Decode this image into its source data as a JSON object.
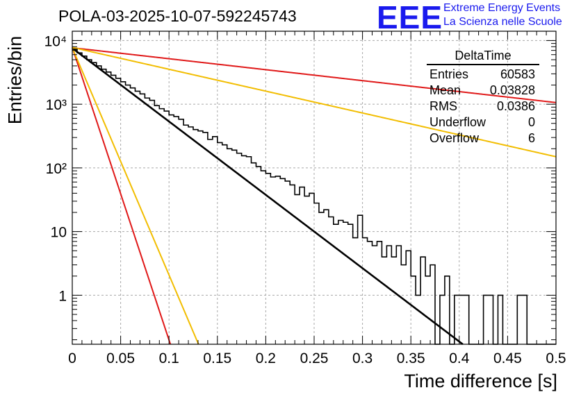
{
  "header": {
    "title": "POLA-03-2025-10-07-592245743",
    "logo_text": "EEE",
    "logo_line1": "Extreme Energy Events",
    "logo_line2": "La Scienza nelle Scuole"
  },
  "stats_box": {
    "name": "DeltaTime",
    "rows": [
      {
        "label": "Entries",
        "value": "60583"
      },
      {
        "label": "Mean",
        "value": "0.03828"
      },
      {
        "label": "RMS",
        "value": "0.0386"
      },
      {
        "label": "Underflow",
        "value": "0"
      },
      {
        "label": "Overflow",
        "value": "6"
      }
    ]
  },
  "chart_data": {
    "type": "histogram",
    "title": "POLA-03-2025-10-07-592245743",
    "xlabel": "Time difference [s]",
    "ylabel": "Entries/bin",
    "xlim": [
      0,
      0.5
    ],
    "ylim": [
      0.17,
      14000
    ],
    "yscale": "log",
    "grid": true,
    "bin_width": 0.005,
    "xticks": [
      0,
      0.05,
      0.1,
      0.15,
      0.2,
      0.25,
      0.3,
      0.35,
      0.4,
      0.45,
      0.5
    ],
    "xtick_labels": [
      "0",
      "0.05",
      "0.1",
      "0.15",
      "0.2",
      "0.25",
      "0.3",
      "0.35",
      "0.4",
      "0.45",
      "0.5"
    ],
    "yticks": [
      1,
      10,
      100,
      1000,
      10000
    ],
    "ytick_labels": [
      "1",
      "10",
      "10²",
      "10³",
      "10⁴"
    ],
    "counts": [
      7300,
      6400,
      5700,
      5000,
      4500,
      4000,
      3550,
      3200,
      2850,
      2550,
      2250,
      2000,
      1800,
      1600,
      1450,
      1250,
      1150,
      950,
      850,
      780,
      680,
      640,
      580,
      470,
      440,
      400,
      380,
      360,
      280,
      310,
      250,
      230,
      200,
      190,
      170,
      155,
      150,
      120,
      105,
      90,
      82,
      72,
      74,
      68,
      62,
      54,
      38,
      50,
      36,
      40,
      28,
      20,
      22,
      17,
      13,
      15,
      14,
      13,
      8,
      18,
      8,
      7,
      6,
      7,
      4,
      6,
      4,
      6,
      3,
      5,
      2,
      1,
      4,
      2,
      3,
      0,
      1,
      2,
      0,
      1,
      1,
      1,
      0,
      0,
      0,
      1,
      1,
      0,
      1,
      0,
      0,
      0,
      1,
      1,
      0,
      0,
      0,
      0,
      0,
      0
    ],
    "series": [
      {
        "name": "fit",
        "color": "#000000",
        "kind": "exponential",
        "A": 7600,
        "tau": 0.0377
      },
      {
        "name": "red-steep",
        "color": "#e01818",
        "kind": "exponential",
        "A": 7800,
        "tau": 0.00945
      },
      {
        "name": "red-slow",
        "color": "#e01818",
        "kind": "exponential",
        "A": 7700,
        "tau": 0.2523
      },
      {
        "name": "orange-steep",
        "color": "#f2bd00",
        "kind": "exponential",
        "A": 7700,
        "tau": 0.01217
      },
      {
        "name": "orange-slow",
        "color": "#f2bd00",
        "kind": "exponential",
        "A": 7800,
        "tau": 0.1265
      }
    ]
  }
}
